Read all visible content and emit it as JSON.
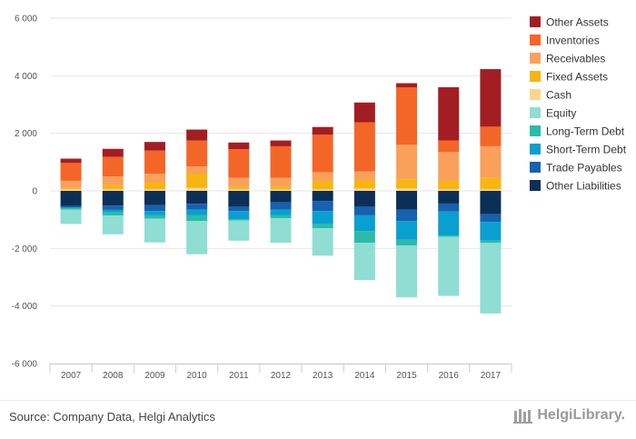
{
  "chart_data": {
    "type": "bar",
    "stacked": true,
    "categories": [
      "2007",
      "2008",
      "2009",
      "2010",
      "2011",
      "2012",
      "2013",
      "2014",
      "2015",
      "2016",
      "2017"
    ],
    "ylim": [
      -6000,
      6000
    ],
    "yticks": [
      6000,
      4000,
      2000,
      0,
      -2000,
      -4000,
      -6000
    ],
    "ytick_labels": [
      "6 000",
      "4 000",
      "2 000",
      "0",
      "-2 000",
      "-4 000",
      "-6 000"
    ],
    "grid": true,
    "legend_position": "right",
    "series": [
      {
        "name": "Other Assets",
        "color": "#a31e23",
        "values": [
          150,
          280,
          300,
          380,
          230,
          200,
          270,
          690,
          140,
          1850,
          2000
        ]
      },
      {
        "name": "Inventories",
        "color": "#f46627",
        "values": [
          620,
          680,
          800,
          900,
          1000,
          1100,
          1300,
          1700,
          2000,
          400,
          680
        ]
      },
      {
        "name": "Receivables",
        "color": "#f9a05a",
        "values": [
          250,
          300,
          300,
          250,
          300,
          300,
          300,
          300,
          1200,
          1000,
          1100
        ]
      },
      {
        "name": "Fixed Assets",
        "color": "#f7b511",
        "values": [
          50,
          150,
          250,
          500,
          100,
          100,
          300,
          300,
          320,
          300,
          400
        ]
      },
      {
        "name": "Cash",
        "color": "#fdd68c",
        "values": [
          50,
          50,
          50,
          100,
          50,
          50,
          50,
          80,
          80,
          50,
          50
        ]
      },
      {
        "name": "Equity",
        "color": "#8fddd3",
        "values": [
          -500,
          -650,
          -820,
          -1150,
          -700,
          -850,
          -950,
          -1300,
          -1800,
          -2050,
          -2450
        ]
      },
      {
        "name": "Long-Term Debt",
        "color": "#2bbba8",
        "values": [
          -50,
          -120,
          -120,
          -200,
          -50,
          -100,
          -150,
          -400,
          -200,
          -50,
          -80
        ]
      },
      {
        "name": "Short-Term Debt",
        "color": "#0a9fd1",
        "values": [
          -30,
          -80,
          -150,
          -200,
          -280,
          -200,
          -450,
          -550,
          -650,
          -830,
          -650
        ]
      },
      {
        "name": "Trade Payables",
        "color": "#1661b0",
        "values": [
          -50,
          -150,
          -200,
          -200,
          -150,
          -250,
          -350,
          -300,
          -400,
          -280,
          -270
        ]
      },
      {
        "name": "Other Liabilities",
        "color": "#0b2f56",
        "values": [
          -520,
          -510,
          -500,
          -450,
          -550,
          -400,
          -350,
          -550,
          -650,
          -440,
          -810
        ]
      }
    ]
  },
  "footer": {
    "source": "Source: Company Data, Helgi Analytics",
    "brand": "HelgiLibrary."
  }
}
